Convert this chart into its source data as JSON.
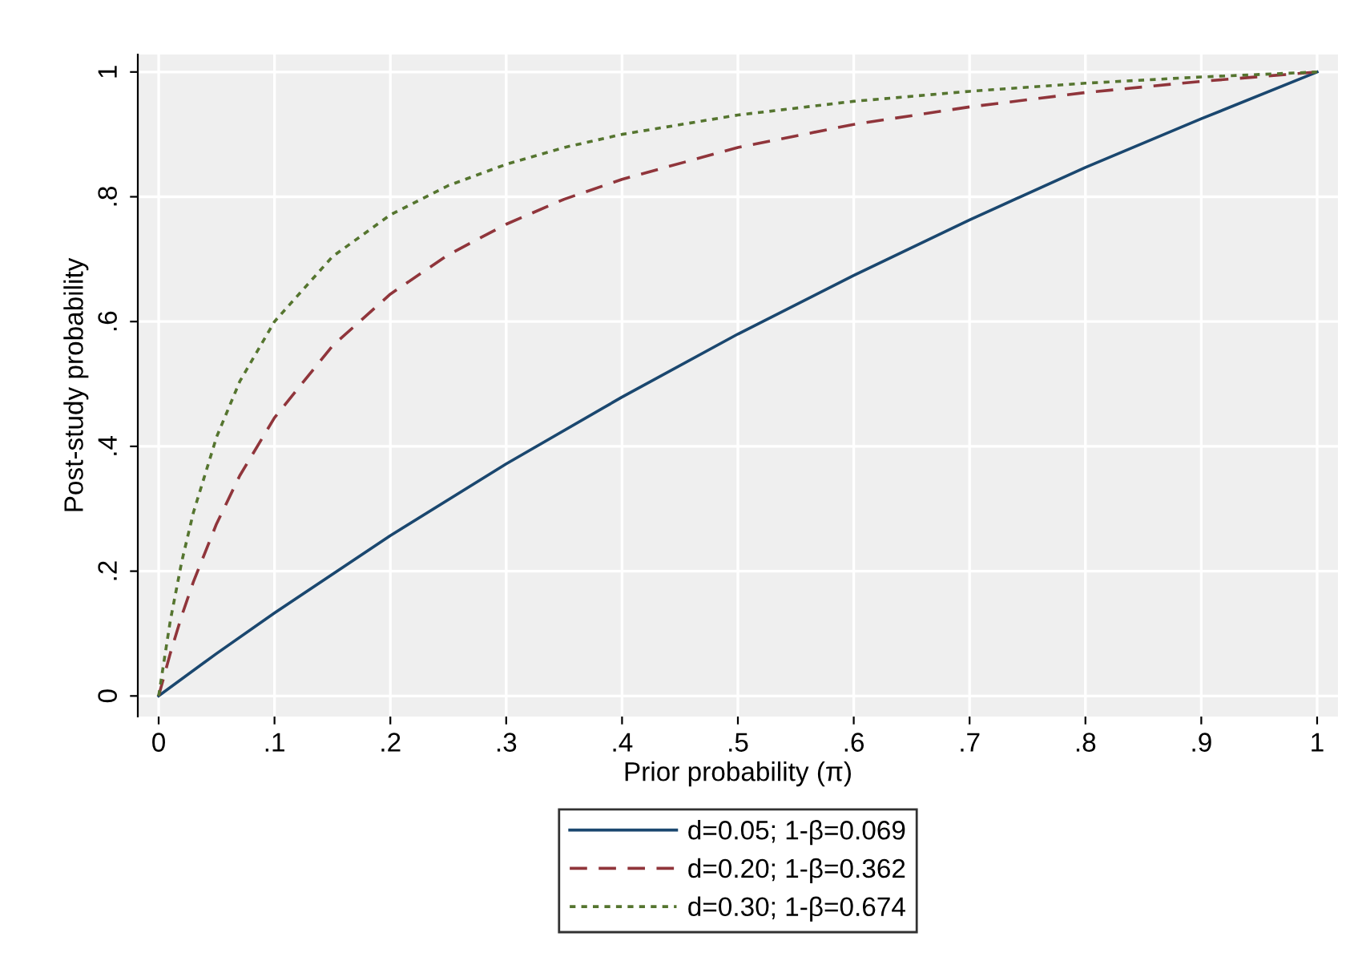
{
  "chart_data": {
    "type": "line",
    "xlabel": "Prior probability (π)",
    "ylabel": "Post-study probability",
    "xlim": [
      -0.018,
      1.018
    ],
    "ylim": [
      -0.033,
      1.028
    ],
    "xticks": [
      0,
      {
        "value": 0.1,
        "label": ".1"
      },
      {
        "value": 0.2,
        "label": ".2"
      },
      {
        "value": 0.3,
        "label": ".3"
      },
      {
        "value": 0.4,
        "label": ".4"
      },
      {
        "value": 0.5,
        "label": ".5"
      },
      {
        "value": 0.6,
        "label": ".6"
      },
      {
        "value": 0.7,
        "label": ".7"
      },
      {
        "value": 0.8,
        "label": ".8"
      },
      {
        "value": 0.9,
        "label": ".9"
      },
      1
    ],
    "yticks": [
      0,
      {
        "value": 0.2,
        "label": ".2"
      },
      {
        "value": 0.4,
        "label": ".4"
      },
      {
        "value": 0.6,
        "label": ".6"
      },
      {
        "value": 0.8,
        "label": ".8"
      },
      1
    ],
    "grid": true,
    "legend": "bottom",
    "marker": "none",
    "series": [
      {
        "name": "d=0.05; 1-β=0.069",
        "color": "#1a476f",
        "line_style": "solid",
        "x": [
          0,
          0.05,
          0.1,
          0.2,
          0.3,
          0.4,
          0.5,
          0.6,
          0.7,
          0.8,
          0.9,
          1
        ],
        "values": [
          0,
          0.068,
          0.133,
          0.257,
          0.372,
          0.479,
          0.58,
          0.674,
          0.763,
          0.847,
          0.925,
          1
        ]
      },
      {
        "name": "d=0.20; 1-β=0.362",
        "color": "#90353b",
        "line_style": "dashed",
        "x": [
          0,
          0.01,
          0.02,
          0.03,
          0.05,
          0.07,
          0.1,
          0.15,
          0.2,
          0.25,
          0.3,
          0.35,
          0.4,
          0.5,
          0.6,
          0.7,
          0.8,
          0.9,
          1
        ],
        "values": [
          0,
          0.068,
          0.129,
          0.183,
          0.276,
          0.353,
          0.446,
          0.561,
          0.644,
          0.707,
          0.756,
          0.796,
          0.828,
          0.879,
          0.916,
          0.944,
          0.967,
          0.985,
          1
        ]
      },
      {
        "name": "d=0.30; 1-β=0.674",
        "color": "#55752f",
        "line_style": "dotted",
        "x": [
          0,
          0.01,
          0.02,
          0.03,
          0.05,
          0.07,
          0.1,
          0.15,
          0.2,
          0.25,
          0.3,
          0.35,
          0.4,
          0.5,
          0.6,
          0.7,
          0.8,
          0.9,
          1
        ],
        "values": [
          0,
          0.12,
          0.216,
          0.294,
          0.415,
          0.504,
          0.6,
          0.704,
          0.771,
          0.818,
          0.852,
          0.879,
          0.9,
          0.931,
          0.953,
          0.969,
          0.982,
          0.992,
          1
        ]
      }
    ]
  }
}
